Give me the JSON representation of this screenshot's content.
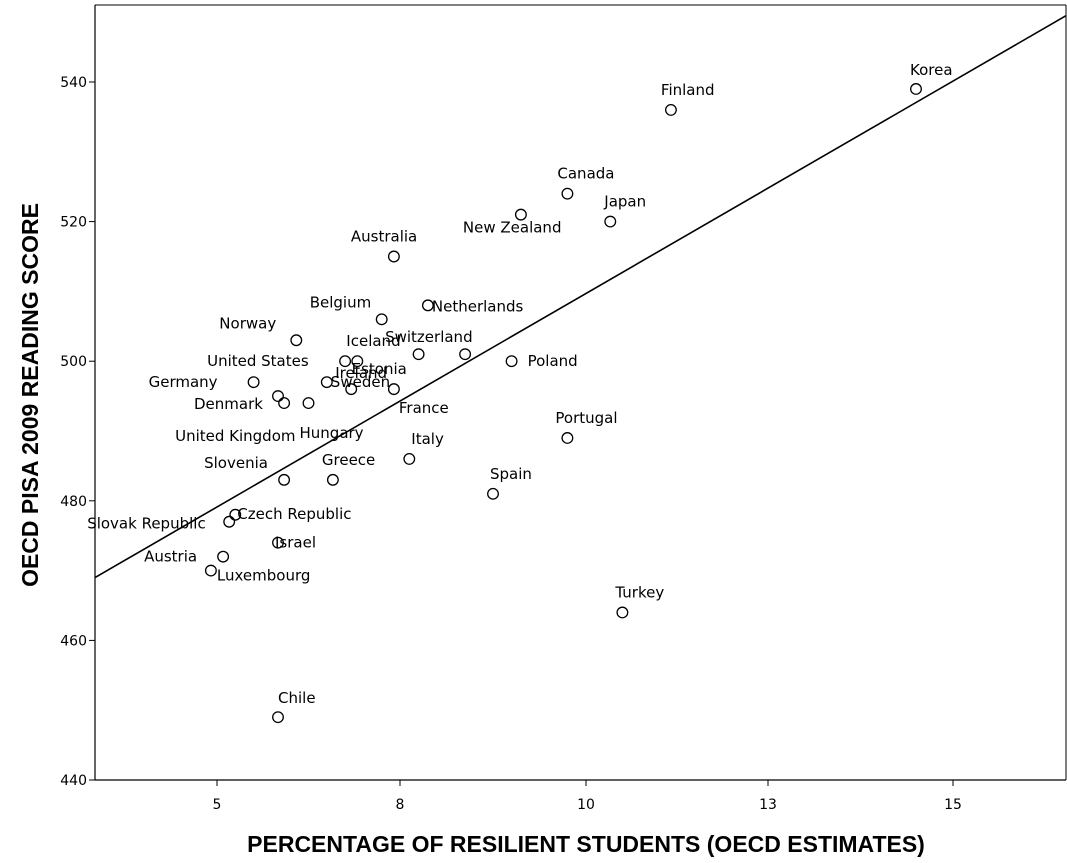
{
  "chart_data": {
    "type": "scatter",
    "title": "",
    "xlabel": "PERCENTAGE OF RESILIENT STUDENTS (OECD ESTIMATES)",
    "ylabel": "OECD PISA 2009 READING SCORE",
    "xlim": [
      3,
      16.8
    ],
    "ylim": [
      440,
      551
    ],
    "xticks": [
      5,
      8,
      10,
      13,
      15
    ],
    "yticks": [
      440,
      460,
      480,
      500,
      520,
      540
    ],
    "grid": false,
    "fit_line": {
      "x": [
        3,
        16.8
      ],
      "y": [
        469,
        549.5
      ]
    },
    "points": [
      {
        "label": "Korea",
        "x": 14.6,
        "y": 539
      },
      {
        "label": "Finland",
        "x": 11.4,
        "y": 536
      },
      {
        "label": "Canada",
        "x": 9.8,
        "y": 524
      },
      {
        "label": "Japan",
        "x": 10.4,
        "y": 520
      },
      {
        "label": "New Zealand",
        "x": 9.3,
        "y": 521
      },
      {
        "label": "Australia",
        "x": 7.9,
        "y": 515
      },
      {
        "label": "Netherlands",
        "x": 8.3,
        "y": 508
      },
      {
        "label": "Belgium",
        "x": 7.7,
        "y": 506
      },
      {
        "label": "Norway",
        "x": 6.3,
        "y": 503
      },
      {
        "label": "Switzerland",
        "x": 8.7,
        "y": 501
      },
      {
        "label": "Poland",
        "x": 9.2,
        "y": 500
      },
      {
        "label": "Iceland",
        "x": 7.3,
        "y": 500
      },
      {
        "label": "United States",
        "x": 7.1,
        "y": 500
      },
      {
        "label": "Estonia",
        "x": 8.2,
        "y": 501
      },
      {
        "label": "Ireland",
        "x": 7.2,
        "y": 496
      },
      {
        "label": "Sweden",
        "x": 6.8,
        "y": 497
      },
      {
        "label": "Germany",
        "x": 5.6,
        "y": 497
      },
      {
        "label": "Denmark",
        "x": 6.0,
        "y": 495
      },
      {
        "label": "United Kingdom",
        "x": 6.1,
        "y": 494
      },
      {
        "label": "Hungary",
        "x": 6.5,
        "y": 494
      },
      {
        "label": "France",
        "x": 7.9,
        "y": 496
      },
      {
        "label": "Portugal",
        "x": 9.8,
        "y": 489
      },
      {
        "label": "Italy",
        "x": 8.1,
        "y": 486
      },
      {
        "label": "Slovenia",
        "x": 6.1,
        "y": 483
      },
      {
        "label": "Greece",
        "x": 6.9,
        "y": 483
      },
      {
        "label": "Spain",
        "x": 9.0,
        "y": 481
      },
      {
        "label": "Czech Republic",
        "x": 5.3,
        "y": 478
      },
      {
        "label": "Slovak Republic",
        "x": 5.2,
        "y": 477
      },
      {
        "label": "Israel",
        "x": 6.0,
        "y": 474
      },
      {
        "label": "Austria",
        "x": 5.1,
        "y": 472
      },
      {
        "label": "Luxembourg",
        "x": 4.9,
        "y": 470
      },
      {
        "label": "Turkey",
        "x": 10.6,
        "y": 464
      },
      {
        "label": "Chile",
        "x": 6.0,
        "y": 449
      }
    ]
  }
}
